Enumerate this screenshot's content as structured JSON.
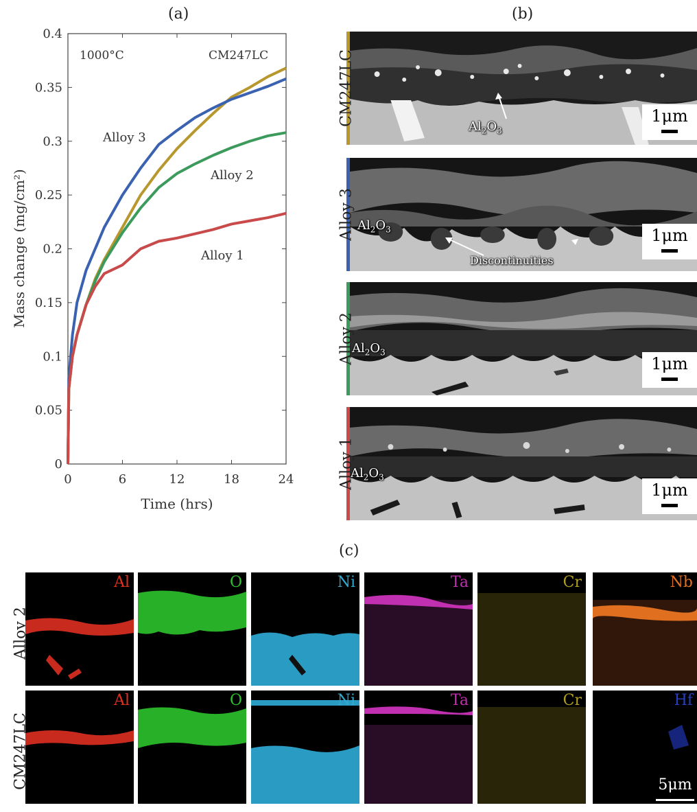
{
  "panel_a": {
    "label": "(a)",
    "temperature": "1000°C",
    "chart_data": {
      "type": "line",
      "xlabel": "Time (hrs)",
      "ylabel": "Mass change (mg/cm²)",
      "xlim": [
        0,
        24
      ],
      "ylim": [
        0,
        0.4
      ],
      "xticks": [
        0,
        6,
        12,
        18,
        24
      ],
      "yticks": [
        0,
        0.05,
        0.1,
        0.15,
        0.2,
        0.25,
        0.3,
        0.35,
        0.4
      ],
      "grid": false,
      "series": [
        {
          "name": "CM247LC",
          "color": "#b8972e",
          "x": [
            0,
            0.1,
            0.5,
            1,
            2,
            3,
            4,
            6,
            8,
            10,
            12,
            14,
            16,
            18,
            20,
            22,
            24
          ],
          "y": [
            0,
            0.07,
            0.1,
            0.12,
            0.148,
            0.172,
            0.19,
            0.22,
            0.25,
            0.273,
            0.293,
            0.31,
            0.326,
            0.341,
            0.35,
            0.36,
            0.368
          ]
        },
        {
          "name": "Alloy 3",
          "color": "#3a62b0",
          "x": [
            0,
            0.1,
            0.5,
            1,
            2,
            3,
            4,
            6,
            8,
            10,
            12,
            14,
            16,
            18,
            20,
            22,
            24
          ],
          "y": [
            0,
            0.08,
            0.12,
            0.15,
            0.18,
            0.2,
            0.22,
            0.25,
            0.275,
            0.297,
            0.31,
            0.322,
            0.331,
            0.339,
            0.345,
            0.351,
            0.358
          ]
        },
        {
          "name": "Alloy 2",
          "color": "#3c9a5c",
          "x": [
            0,
            0.1,
            0.5,
            1,
            2,
            3,
            4,
            6,
            8,
            10,
            12,
            14,
            16,
            18,
            20,
            22,
            24
          ],
          "y": [
            0,
            0.07,
            0.1,
            0.12,
            0.148,
            0.17,
            0.188,
            0.215,
            0.238,
            0.257,
            0.27,
            0.279,
            0.287,
            0.294,
            0.3,
            0.305,
            0.308
          ]
        },
        {
          "name": "Alloy 1",
          "color": "#c94a4a",
          "x": [
            0,
            0.1,
            0.5,
            1,
            2,
            3,
            4,
            6,
            8,
            10,
            12,
            14,
            16,
            18,
            20,
            22,
            24
          ],
          "y": [
            0,
            0.07,
            0.1,
            0.12,
            0.148,
            0.165,
            0.177,
            0.185,
            0.2,
            0.207,
            0.21,
            0.214,
            0.218,
            0.223,
            0.226,
            0.229,
            0.233
          ]
        }
      ],
      "annotations": [
        "CM247LC",
        "Alloy 3",
        "Alloy 2",
        "Alloy 1"
      ]
    }
  },
  "panel_b": {
    "label": "(b)",
    "rows": [
      {
        "name": "CM247LC",
        "color": "#b8972e",
        "scale": "1μm",
        "annotations": [
          {
            "text": "Al",
            "sub": "2",
            "text2": "O",
            "sub2": "3"
          }
        ]
      },
      {
        "name": "Alloy 3",
        "color": "#3a62b0",
        "scale": "1μm",
        "annotations": [
          {
            "text": "Al",
            "sub": "2",
            "text2": "O",
            "sub2": "3"
          },
          {
            "text": "Discontinuities"
          }
        ]
      },
      {
        "name": "Alloy 2",
        "color": "#3c9a5c",
        "scale": "1μm",
        "annotations": [
          {
            "text": "Al",
            "sub": "2",
            "text2": "O",
            "sub2": "3"
          }
        ]
      },
      {
        "name": "Alloy 1",
        "color": "#c94a4a",
        "scale": "1μm",
        "annotations": [
          {
            "text": "Al",
            "sub": "2",
            "text2": "O",
            "sub2": "3"
          }
        ]
      }
    ]
  },
  "panel_c": {
    "label": "(c)",
    "rows": [
      "Alloy 2",
      "CM247LC"
    ],
    "elements": [
      {
        "symbol": "Al",
        "color": "#e03020"
      },
      {
        "symbol": "O",
        "color": "#30c030"
      },
      {
        "symbol": "Ni",
        "color": "#30a8d0"
      },
      {
        "symbol": "Ta",
        "color": "#c030b0"
      },
      {
        "symbol": "Cr",
        "color": "#b0a020"
      },
      {
        "symbol": "Nb",
        "color": "#e07020"
      }
    ],
    "extra_element": {
      "symbol": "Hf",
      "color": "#2840c0"
    },
    "scale": "5μm"
  }
}
